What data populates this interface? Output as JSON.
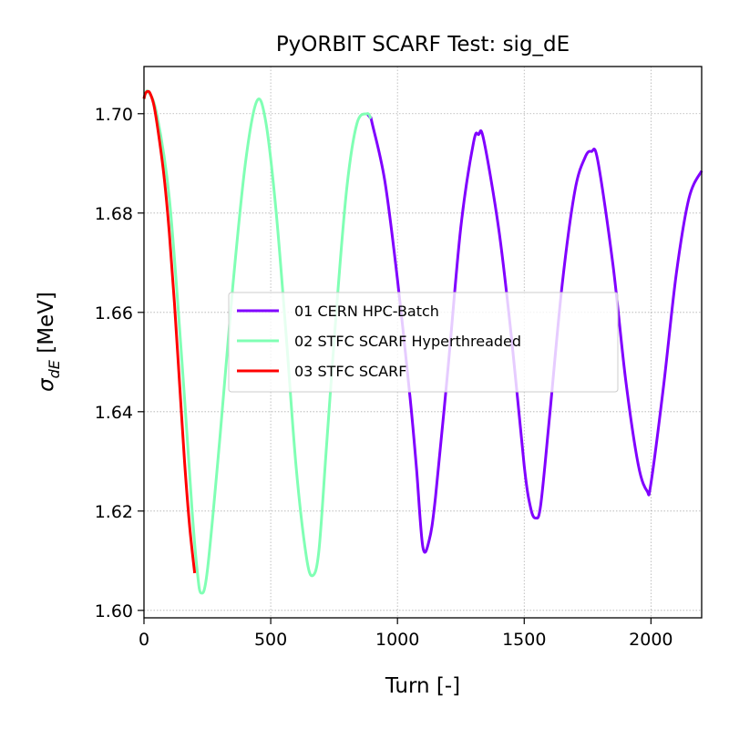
{
  "chart_data": {
    "type": "line",
    "title": "PyORBIT SCARF Test: sig_dE",
    "xlabel": "Turn [-]",
    "ylabel_symbol": "σ",
    "ylabel_subscript": "dE",
    "ylabel_unit": " [MeV]",
    "xlim": [
      0,
      2200
    ],
    "ylim": [
      1.5985,
      1.7095
    ],
    "xticks": [
      0,
      500,
      1000,
      1500,
      2000
    ],
    "xtick_labels": [
      "0",
      "500",
      "1000",
      "1500",
      "2000"
    ],
    "yticks": [
      1.6,
      1.62,
      1.64,
      1.66,
      1.68,
      1.7
    ],
    "ytick_labels": [
      "1.60",
      "1.62",
      "1.64",
      "1.66",
      "1.68",
      "1.70"
    ],
    "grid": true,
    "legend_position": "center-right",
    "series": [
      {
        "name": "01 CERN HPC-Batch",
        "color": "#8000ff",
        "x": [
          880,
          895,
          900,
          950,
          1000,
          1050,
          1075,
          1100,
          1125,
          1150,
          1200,
          1250,
          1300,
          1320,
          1340,
          1400,
          1450,
          1500,
          1525,
          1545,
          1565,
          1600,
          1650,
          1700,
          1740,
          1765,
          1790,
          1850,
          1900,
          1950,
          1985,
          2000,
          2050,
          2100,
          2150,
          2200
        ],
        "y": [
          1.7,
          1.699,
          1.6981,
          1.6865,
          1.6666,
          1.6427,
          1.6286,
          1.6128,
          1.6141,
          1.6228,
          1.6491,
          1.6772,
          1.6942,
          1.6958,
          1.6948,
          1.6766,
          1.6548,
          1.6291,
          1.6207,
          1.6186,
          1.6212,
          1.639,
          1.6657,
          1.6845,
          1.6912,
          1.6924,
          1.6906,
          1.6696,
          1.6465,
          1.6293,
          1.624,
          1.6256,
          1.6453,
          1.6678,
          1.683,
          1.6885
        ]
      },
      {
        "name": "02 STFC SCARF Hyperthreaded",
        "color": "#80ffb4",
        "x": [
          0,
          15,
          50,
          100,
          150,
          190,
          210,
          225,
          250,
          300,
          350,
          400,
          445,
          480,
          520,
          560,
          600,
          640,
          665,
          690,
          720,
          760,
          800,
          840,
          880,
          895
        ],
        "y": [
          1.703,
          1.7045,
          1.7,
          1.683,
          1.65,
          1.62,
          1.608,
          1.6035,
          1.608,
          1.635,
          1.665,
          1.69,
          1.7025,
          1.6985,
          1.681,
          1.656,
          1.629,
          1.611,
          1.607,
          1.612,
          1.633,
          1.661,
          1.685,
          1.698,
          1.7,
          1.699
        ]
      },
      {
        "name": "03 STFC SCARF",
        "color": "#ff0000",
        "x": [
          0,
          5,
          15,
          25,
          40,
          60,
          80,
          100,
          120,
          140,
          160,
          180,
          200
        ],
        "y": [
          1.703,
          1.704,
          1.7045,
          1.704,
          1.7015,
          1.695,
          1.687,
          1.676,
          1.662,
          1.646,
          1.63,
          1.617,
          1.6075
        ]
      }
    ]
  }
}
